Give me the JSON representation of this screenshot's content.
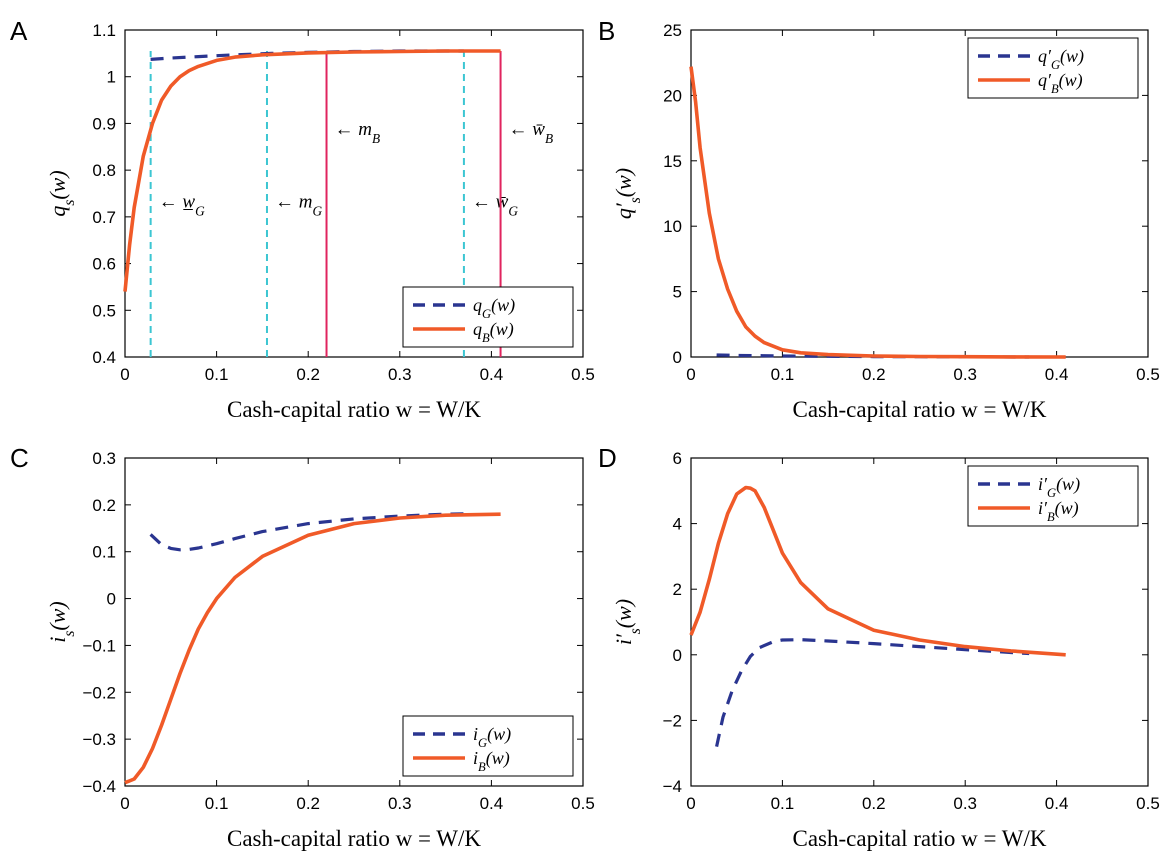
{
  "colors": {
    "G": "#2a3590",
    "B": "#f05a28",
    "marker_G": "#3cc6d2",
    "marker_B": "#e0245e"
  },
  "chart_data": [
    {
      "panel": "A",
      "type": "line",
      "xlabel": "Cash-capital ratio w = W/K",
      "ylabel": "q_s(w)",
      "xlim": [
        0,
        0.5
      ],
      "ylim": [
        0.4,
        1.1
      ],
      "xticks": [
        "0",
        "0.1",
        "0.2",
        "0.3",
        "0.4",
        "0.5"
      ],
      "yticks": [
        "0.4",
        "0.5",
        "0.6",
        "0.7",
        "0.8",
        "0.9",
        "1",
        "1.1"
      ],
      "legend_position": "bottom-right",
      "series": [
        {
          "name": "q_G(w)",
          "style": "dashed",
          "x": [
            0.028,
            0.05,
            0.08,
            0.12,
            0.16,
            0.2,
            0.25,
            0.3,
            0.35,
            0.37
          ],
          "y": [
            1.037,
            1.04,
            1.043,
            1.047,
            1.05,
            1.052,
            1.054,
            1.055,
            1.055,
            1.055
          ]
        },
        {
          "name": "q_B(w)",
          "style": "solid",
          "x": [
            0,
            0.005,
            0.01,
            0.02,
            0.03,
            0.04,
            0.05,
            0.06,
            0.07,
            0.08,
            0.1,
            0.12,
            0.15,
            0.2,
            0.25,
            0.3,
            0.35,
            0.41
          ],
          "y": [
            0.54,
            0.64,
            0.72,
            0.83,
            0.9,
            0.95,
            0.98,
            1.0,
            1.013,
            1.022,
            1.035,
            1.042,
            1.047,
            1.051,
            1.053,
            1.054,
            1.055,
            1.055
          ]
        }
      ],
      "markers": [
        {
          "label": "← w̲_G",
          "x": 0.028,
          "color_key": "marker_G",
          "style": "dashed",
          "label_y": 0.72
        },
        {
          "label": "← m_G",
          "x": 0.155,
          "color_key": "marker_G",
          "style": "dashed",
          "label_y": 0.72
        },
        {
          "label": "← m_B",
          "x": 0.22,
          "color_key": "marker_B",
          "style": "solid",
          "label_y": 0.875
        },
        {
          "label": "← w̄_G",
          "x": 0.37,
          "color_key": "marker_G",
          "style": "dashed",
          "label_y": 0.72
        },
        {
          "label": "← w̄_B",
          "x": 0.41,
          "color_key": "marker_B",
          "style": "solid",
          "label_y": 0.875
        }
      ]
    },
    {
      "panel": "B",
      "type": "line",
      "xlabel": "Cash-capital ratio w = W/K",
      "ylabel": "q'_s(w)",
      "xlim": [
        0,
        0.5
      ],
      "ylim": [
        0,
        25
      ],
      "xticks": [
        "0",
        "0.1",
        "0.2",
        "0.3",
        "0.4",
        "0.5"
      ],
      "yticks": [
        "0",
        "5",
        "10",
        "15",
        "20",
        "25"
      ],
      "legend_position": "top-right",
      "series": [
        {
          "name": "q'_G(w)",
          "style": "dashed",
          "x": [
            0.028,
            0.05,
            0.08,
            0.1,
            0.15,
            0.2,
            0.25,
            0.3,
            0.37
          ],
          "y": [
            0.15,
            0.12,
            0.1,
            0.08,
            0.05,
            0.03,
            0.02,
            0.01,
            0.0
          ]
        },
        {
          "name": "q'_B(w)",
          "style": "solid",
          "x": [
            0,
            0.005,
            0.01,
            0.02,
            0.03,
            0.04,
            0.05,
            0.06,
            0.07,
            0.08,
            0.1,
            0.12,
            0.15,
            0.2,
            0.25,
            0.3,
            0.35,
            0.41
          ],
          "y": [
            22.2,
            19.5,
            16.0,
            11.0,
            7.5,
            5.2,
            3.5,
            2.3,
            1.6,
            1.1,
            0.55,
            0.32,
            0.18,
            0.08,
            0.04,
            0.02,
            0.01,
            0.0
          ]
        }
      ]
    },
    {
      "panel": "C",
      "type": "line",
      "xlabel": "Cash-capital ratio w = W/K",
      "ylabel": "i_s(w)",
      "xlim": [
        0,
        0.5
      ],
      "ylim": [
        -0.4,
        0.3
      ],
      "xticks": [
        "0",
        "0.1",
        "0.2",
        "0.3",
        "0.4",
        "0.5"
      ],
      "yticks": [
        "−0.4",
        "−0.3",
        "−0.2",
        "−0.1",
        "0",
        "0.1",
        "0.2",
        "0.3"
      ],
      "legend_position": "bottom-right",
      "series": [
        {
          "name": "i_G(w)",
          "style": "dashed",
          "x": [
            0.028,
            0.04,
            0.05,
            0.06,
            0.07,
            0.08,
            0.1,
            0.12,
            0.15,
            0.2,
            0.25,
            0.3,
            0.35,
            0.37
          ],
          "y": [
            0.137,
            0.115,
            0.107,
            0.104,
            0.105,
            0.108,
            0.117,
            0.128,
            0.143,
            0.16,
            0.17,
            0.176,
            0.18,
            0.181
          ]
        },
        {
          "name": "i_B(w)",
          "style": "solid",
          "x": [
            0,
            0.01,
            0.02,
            0.03,
            0.04,
            0.05,
            0.06,
            0.07,
            0.08,
            0.09,
            0.1,
            0.12,
            0.15,
            0.2,
            0.25,
            0.3,
            0.35,
            0.41
          ],
          "y": [
            -0.393,
            -0.385,
            -0.36,
            -0.32,
            -0.27,
            -0.215,
            -0.16,
            -0.11,
            -0.065,
            -0.03,
            0.0,
            0.045,
            0.09,
            0.135,
            0.16,
            0.172,
            0.178,
            0.18
          ]
        }
      ]
    },
    {
      "panel": "D",
      "type": "line",
      "xlabel": "Cash-capital ratio w = W/K",
      "ylabel": "i'_s(w)",
      "xlim": [
        0,
        0.5
      ],
      "ylim": [
        -4,
        6
      ],
      "xticks": [
        "0",
        "0.1",
        "0.2",
        "0.3",
        "0.4",
        "0.5"
      ],
      "yticks": [
        "−4",
        "−2",
        "0",
        "2",
        "4",
        "6"
      ],
      "legend_position": "top-right",
      "series": [
        {
          "name": "i'_G(w)",
          "style": "dashed",
          "x": [
            0.028,
            0.035,
            0.045,
            0.055,
            0.065,
            0.075,
            0.09,
            0.1,
            0.12,
            0.15,
            0.2,
            0.25,
            0.3,
            0.35,
            0.37
          ],
          "y": [
            -2.8,
            -1.9,
            -1.1,
            -0.5,
            -0.05,
            0.22,
            0.4,
            0.45,
            0.46,
            0.42,
            0.34,
            0.25,
            0.16,
            0.07,
            0.04
          ]
        },
        {
          "name": "i'_B(w)",
          "style": "solid",
          "x": [
            0,
            0.01,
            0.02,
            0.03,
            0.04,
            0.05,
            0.06,
            0.065,
            0.07,
            0.08,
            0.09,
            0.1,
            0.12,
            0.15,
            0.2,
            0.25,
            0.3,
            0.35,
            0.41
          ],
          "y": [
            0.6,
            1.3,
            2.3,
            3.4,
            4.3,
            4.9,
            5.1,
            5.08,
            5.0,
            4.5,
            3.8,
            3.1,
            2.2,
            1.4,
            0.75,
            0.45,
            0.25,
            0.12,
            0.0
          ]
        }
      ]
    }
  ]
}
